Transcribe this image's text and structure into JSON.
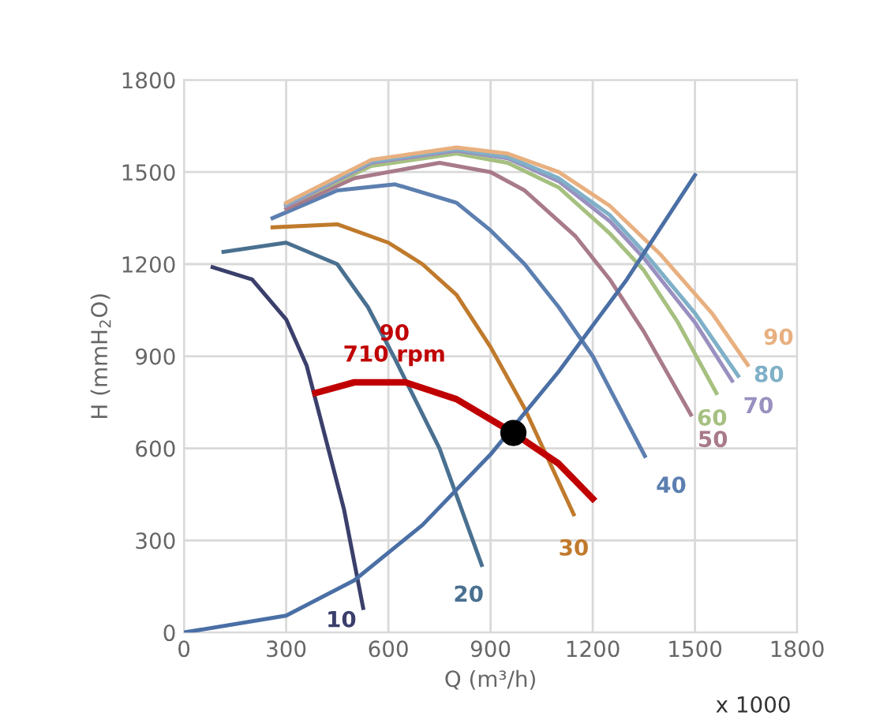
{
  "chart_data": {
    "type": "line",
    "xlabel": "Q (m³/h)",
    "ylabel": "H (mmH$_{2}$O)",
    "xlim": [
      0,
      1800
    ],
    "ylim": [
      0,
      1800
    ],
    "xticks": [
      0,
      300,
      600,
      900,
      1200,
      1500,
      1800
    ],
    "yticks": [
      0,
      300,
      600,
      900,
      1200,
      1500,
      1800
    ],
    "grid": true,
    "marker": "none",
    "series": [
      {
        "name": "10",
        "color": "#3b3f6b",
        "x": [
          84,
          200,
          300,
          360,
          400,
          470,
          526
        ],
        "values": [
          1190,
          1150,
          1020,
          870,
          700,
          400,
          80
        ]
      },
      {
        "name": "20",
        "color": "#4a7090",
        "x": [
          116,
          300,
          450,
          540,
          620,
          750,
          874
        ],
        "values": [
          1240,
          1270,
          1200,
          1060,
          890,
          600,
          220
        ]
      },
      {
        "name": "30",
        "color": "#c07a2c",
        "x": [
          260,
          450,
          600,
          700,
          800,
          900,
          1000,
          1144
        ],
        "values": [
          1320,
          1330,
          1270,
          1200,
          1100,
          930,
          730,
          385
        ]
      },
      {
        "name": "40",
        "color": "#5c7fb0",
        "x": [
          260,
          450,
          620,
          800,
          900,
          1000,
          1100,
          1200,
          1353
        ],
        "values": [
          1350,
          1440,
          1460,
          1400,
          1310,
          1200,
          1060,
          900,
          575
        ]
      },
      {
        "name": "50",
        "color": "#a87a8a",
        "x": [
          300,
          500,
          750,
          900,
          1000,
          1150,
          1250,
          1350,
          1488
        ],
        "values": [
          1380,
          1480,
          1530,
          1500,
          1440,
          1290,
          1150,
          980,
          710
        ]
      },
      {
        "name": "60",
        "color": "#a6c080",
        "x": [
          300,
          550,
          800,
          950,
          1100,
          1250,
          1350,
          1450,
          1563
        ],
        "values": [
          1390,
          1520,
          1560,
          1530,
          1450,
          1300,
          1180,
          1010,
          780
        ]
      },
      {
        "name": "70",
        "color": "#9a90c0",
        "x": [
          300,
          550,
          800,
          950,
          1100,
          1250,
          1350,
          1500,
          1609
        ],
        "values": [
          1390,
          1530,
          1570,
          1545,
          1470,
          1340,
          1220,
          1010,
          820
        ]
      },
      {
        "name": "80",
        "color": "#7fb0c8",
        "x": [
          300,
          550,
          800,
          950,
          1100,
          1250,
          1350,
          1500,
          1627
        ],
        "values": [
          1395,
          1535,
          1575,
          1550,
          1480,
          1360,
          1240,
          1040,
          836
        ]
      },
      {
        "name": "90",
        "color": "#e8b080",
        "x": [
          300,
          550,
          800,
          950,
          1100,
          1250,
          1400,
          1550,
          1655
        ],
        "values": [
          1400,
          1540,
          1580,
          1560,
          1500,
          1390,
          1230,
          1040,
          872
        ]
      },
      {
        "color": "#4a6fa5",
        "x": [
          0,
          300,
          500,
          700,
          900,
          1100,
          1300,
          1500
        ],
        "values": [
          0,
          55,
          170,
          350,
          580,
          850,
          1150,
          1490
        ]
      },
      {
        "name": "90\n710 rpm",
        "color": "#c00000",
        "x": [
          386,
          500,
          650,
          800,
          967,
          1100,
          1200
        ],
        "values": [
          780,
          815,
          815,
          760,
          650,
          550,
          436
        ]
      },
      {
        "type": "scatter",
        "color": "#000000",
        "marker": "circle",
        "x": [
          967
        ],
        "values": [
          650
        ]
      }
    ],
    "annotations": [
      "x 1000"
    ]
  }
}
